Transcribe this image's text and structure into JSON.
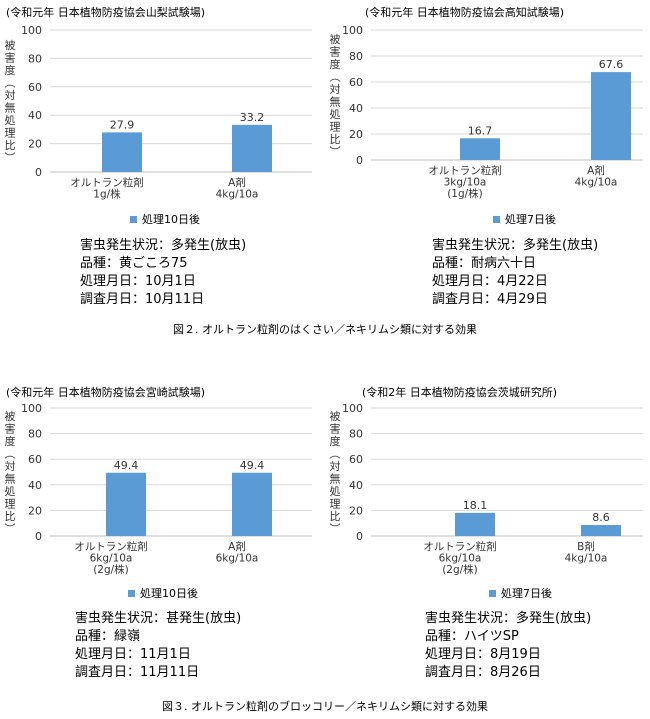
{
  "figures": {
    "fig2_caption": "図２. オルトラン粒剤のはくさい／ネキリムシ類に対する効果",
    "fig3_caption": "図３. オルトラン粒剤のブロッコリー／ネキリムシ類に対する効果"
  },
  "chart_data": [
    {
      "type": "bar",
      "title": "(令和元年 日本植物防疫協会山梨試験場)",
      "ylabel": "被害度(対無処理比)",
      "ylim": [
        0,
        100
      ],
      "yticks": [
        "0",
        "20",
        "40",
        "60",
        "80",
        "100"
      ],
      "categories": [
        [
          "オルトラン粒剤",
          "1g/株"
        ],
        [
          "A剤",
          "4kg/10a"
        ]
      ],
      "series": [
        {
          "name": "処理10日後",
          "values": [
            27.9,
            33.2
          ]
        }
      ],
      "value_labels": [
        "27.9",
        "33.2"
      ],
      "color": "#5b9bd5",
      "legend": "bottom",
      "info": [
        "害虫発生状況：多発生(放虫)",
        "品種：黄ごころ75",
        "処理月日：10月1日",
        "調査月日：10月11日"
      ]
    },
    {
      "type": "bar",
      "title": "(令和元年 日本植物防疫協会高知試験場)",
      "ylabel": "被害度(対無処理比)",
      "ylim": [
        0,
        100
      ],
      "yticks": [
        "0",
        "20",
        "40",
        "60",
        "80",
        "100"
      ],
      "categories": [
        [
          "オルトラン粒剤",
          "3kg/10a",
          "(1g/株)"
        ],
        [
          "A剤",
          "4kg/10a"
        ]
      ],
      "series": [
        {
          "name": "処理7日後",
          "values": [
            16.7,
            67.6
          ]
        }
      ],
      "value_labels": [
        "16.7",
        "67.6"
      ],
      "color": "#5b9bd5",
      "legend": "bottom",
      "info": [
        "害虫発生状況：多発生(放虫)",
        "品種：耐病六十日",
        "処理月日：4月22日",
        "調査月日：4月29日"
      ]
    },
    {
      "type": "bar",
      "title": "(令和元年 日本植物防疫協会宮崎試験場)",
      "ylabel": "被害度(対無処理比)",
      "ylim": [
        0,
        100
      ],
      "yticks": [
        "0",
        "20",
        "40",
        "60",
        "80",
        "100"
      ],
      "categories": [
        [
          "オルトラン粒剤",
          "6kg/10a",
          "(2g/株)"
        ],
        [
          "A剤",
          "6kg/10a"
        ]
      ],
      "series": [
        {
          "name": "処理10日後",
          "values": [
            49.4,
            49.4
          ]
        }
      ],
      "value_labels": [
        "49.4",
        "49.4"
      ],
      "color": "#5b9bd5",
      "legend": "bottom",
      "info": [
        "害虫発生状況：甚発生(放虫)",
        "品種：緑嶺",
        "処理月日：11月1日",
        "調査月日：11月11日"
      ]
    },
    {
      "type": "bar",
      "title": "(令和2年 日本植物防疫協会茨城研究所)",
      "ylabel": "被害度(対無処理比)",
      "ylim": [
        0,
        100
      ],
      "yticks": [
        "0",
        "20",
        "40",
        "60",
        "80",
        "100"
      ],
      "categories": [
        [
          "オルトラン粒剤",
          "6kg/10a",
          "(2g/株)"
        ],
        [
          "B剤",
          "4kg/10a"
        ]
      ],
      "series": [
        {
          "name": "処理7日後",
          "values": [
            18.1,
            8.6
          ]
        }
      ],
      "value_labels": [
        "18.1",
        "8.6"
      ],
      "color": "#5b9bd5",
      "legend": "bottom",
      "info": [
        "害虫発生状況：多発生(放虫)",
        "品種：ハイツSP",
        "処理月日：8月19日",
        "調査月日：8月26日"
      ]
    }
  ]
}
